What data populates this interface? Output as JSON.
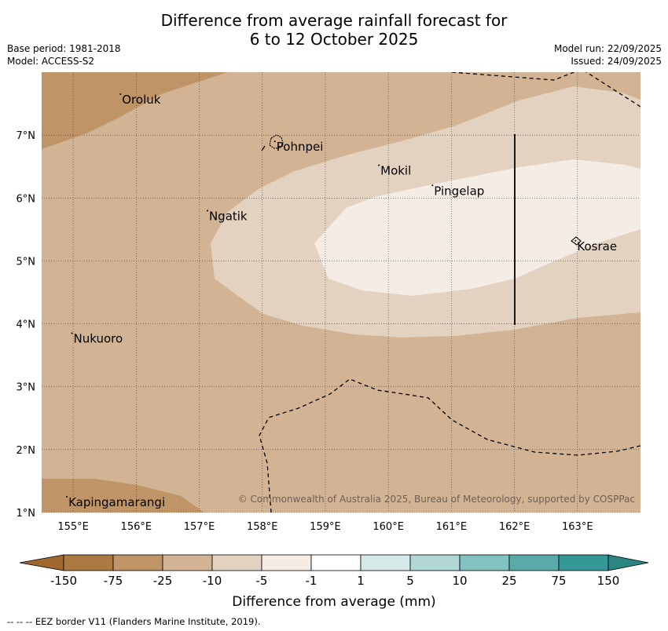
{
  "title_line1": "Difference from average rainfall forecast for",
  "title_line2": "6 to 12 October 2025",
  "base_period": "Base period: 1981-2018",
  "model": "Model: ACCESS-S2",
  "model_run": "Model run: 22/09/2025",
  "issued": "Issued: 24/09/2025",
  "copyright": "© Commonwealth of Australia 2025, Bureau of Meteorology, supported by COSPPac",
  "footer": "--  --  -- EEZ border V11 (Flanders Marine Institute, 2019).",
  "map": {
    "lon_range": [
      154.5,
      164.0
    ],
    "lat_range": [
      1.0,
      8.0
    ],
    "lon_ticks": [
      155,
      156,
      157,
      158,
      159,
      160,
      161,
      162,
      163
    ],
    "lon_tick_labels": [
      "155°E",
      "156°E",
      "157°E",
      "158°E",
      "159°E",
      "160°E",
      "161°E",
      "162°E",
      "163°E"
    ],
    "lat_ticks": [
      7,
      6,
      5,
      4,
      3,
      2,
      1
    ],
    "lat_tick_labels": [
      "7°N",
      "6°N",
      "5°N",
      "4°N",
      "3°N",
      "2°N",
      "1°N"
    ],
    "places": [
      {
        "name": "Oroluk",
        "lon": 155.75,
        "lat": 7.65
      },
      {
        "name": "Pohnpei",
        "lon": 158.2,
        "lat": 6.9
      },
      {
        "name": "Mokil",
        "lon": 159.85,
        "lat": 6.52
      },
      {
        "name": "Pingelap",
        "lon": 160.7,
        "lat": 6.2
      },
      {
        "name": "Ngatik",
        "lon": 157.13,
        "lat": 5.8
      },
      {
        "name": "Kosrae",
        "lon": 162.97,
        "lat": 5.32
      },
      {
        "name": "Nukuoro",
        "lon": 154.98,
        "lat": 3.85
      },
      {
        "name": "Kapingamarangi",
        "lon": 154.9,
        "lat": 1.25
      }
    ]
  },
  "colorbar": {
    "title": "Difference from average (mm)",
    "labels": [
      "-150",
      "-75",
      "-25",
      "-10",
      "-5",
      "-1",
      "1",
      "5",
      "10",
      "25",
      "75",
      "150"
    ],
    "colors": [
      "#aa7a42",
      "#bf9568",
      "#d2b393",
      "#e3d2c0",
      "#f4ece5",
      "#ffffff",
      "#d6eae9",
      "#b0d6d5",
      "#82c2c0",
      "#59aba9",
      "#359896"
    ],
    "low_extend_color": "#a0672f",
    "high_extend_color": "#2b8582"
  },
  "fill_colors": {
    "lt_m75": "#bf9568",
    "m25": "#d2b393",
    "m10": "#e3d2c0",
    "m5": "#f4ece5"
  }
}
